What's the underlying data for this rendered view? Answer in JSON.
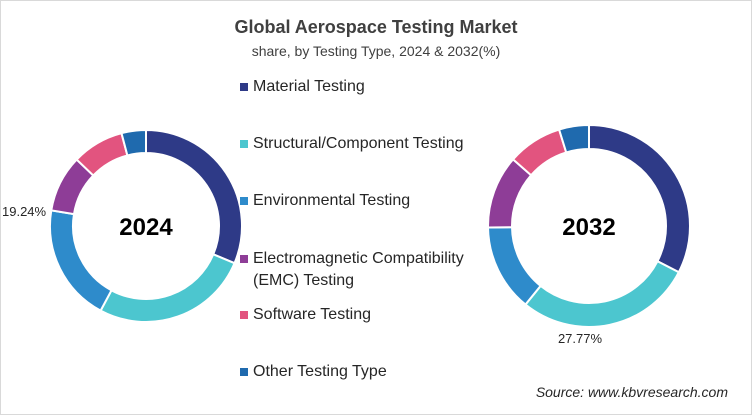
{
  "chart_data": {
    "type": "pie",
    "title": "Global Aerospace Testing Market",
    "subtitle": "share, by Testing Type, 2024 & 2032(%)",
    "categories": [
      "Material Testing",
      "Structural/Component Testing",
      "Environmental Testing",
      "Electromagnetic Compatibility (EMC) Testing",
      "Software Testing",
      "Other Testing Type"
    ],
    "colors": [
      "#2E3A87",
      "#4CC6CF",
      "#2E8BCB",
      "#8E3D97",
      "#E2547F",
      "#1F6AAE"
    ],
    "series": [
      {
        "name": "2024",
        "values": [
          30.5,
          25.8,
          19.24,
          9.3,
          8.5,
          4.0
        ],
        "labels": [
          "",
          "",
          "19.24%",
          "",
          "",
          ""
        ]
      },
      {
        "name": "2032",
        "values": [
          32.0,
          27.77,
          13.7,
          11.5,
          8.6,
          4.7
        ],
        "labels": [
          "",
          "27.77%",
          "",
          "",
          "",
          ""
        ]
      }
    ],
    "source": "Source: www.kbvresearch.com"
  }
}
